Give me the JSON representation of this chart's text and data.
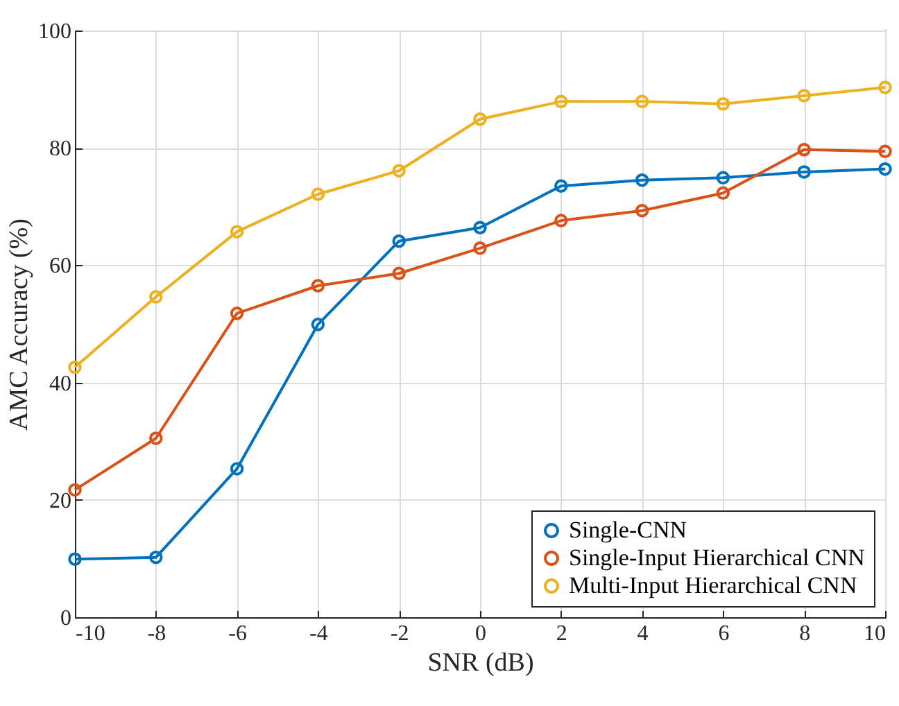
{
  "chart_data": {
    "type": "line",
    "xlabel": "SNR (dB)",
    "ylabel": "AMC Accuracy (%)",
    "x": [
      -10,
      -8,
      -6,
      -4,
      -2,
      0,
      2,
      4,
      6,
      8,
      10
    ],
    "series": [
      {
        "name": "Single-CNN",
        "color": "#0072bd",
        "values": [
          9.9,
          10.2,
          25.3,
          49.9,
          64.1,
          66.4,
          73.5,
          74.5,
          74.9,
          75.9,
          76.4
        ]
      },
      {
        "name": "Single-Input Hierarchical CNN",
        "color": "#d95319",
        "values": [
          21.7,
          30.5,
          51.8,
          56.5,
          58.6,
          62.9,
          67.6,
          69.3,
          72.3,
          79.7,
          79.4
        ]
      },
      {
        "name": "Multi-Input Hierarchical CNN",
        "color": "#edb120",
        "values": [
          42.6,
          54.6,
          65.7,
          72.1,
          76.1,
          84.9,
          87.9,
          87.9,
          87.5,
          88.9,
          90.3
        ]
      }
    ],
    "xlim": [
      -10,
      10
    ],
    "xticks": [
      -10,
      -8,
      -6,
      -4,
      -2,
      0,
      2,
      4,
      6,
      8,
      10
    ],
    "ylim": [
      0,
      100
    ],
    "yticks": [
      0,
      20,
      40,
      60,
      80,
      100
    ],
    "grid": true,
    "legend": "bottom right",
    "marker": "circle",
    "line_style": "solid"
  }
}
